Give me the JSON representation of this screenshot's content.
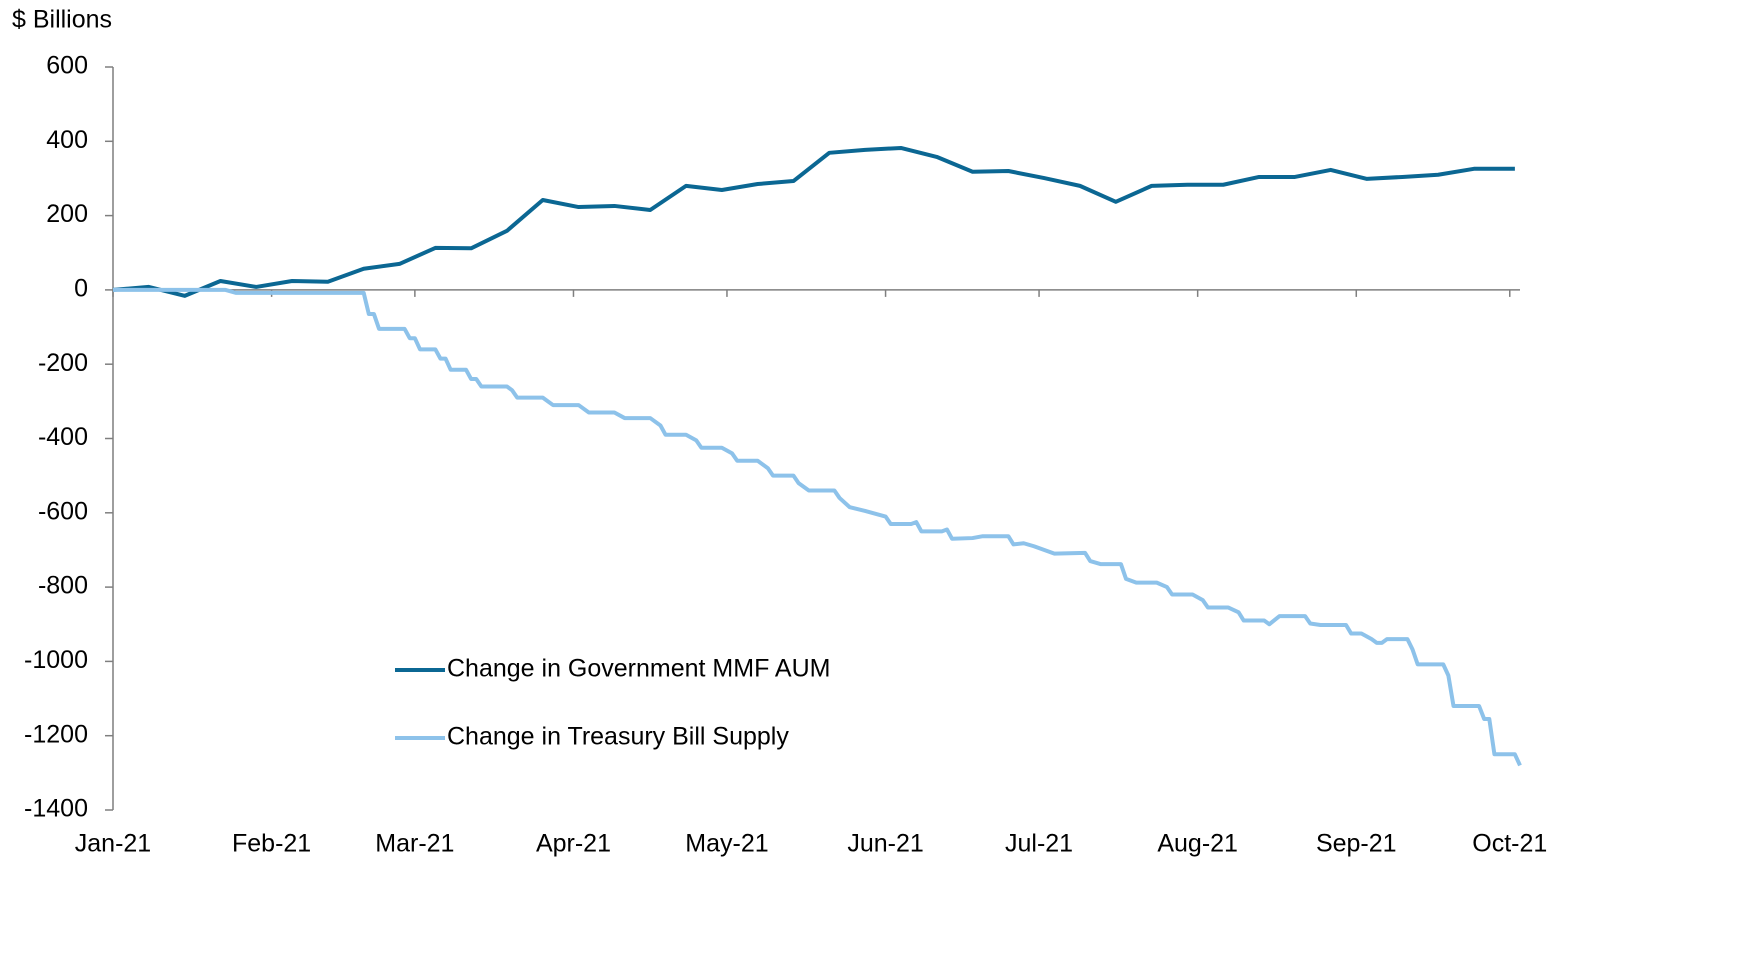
{
  "chart_data": {
    "type": "line",
    "ylabel": "$ Billions",
    "xlim": [
      0,
      275
    ],
    "xticks": [
      {
        "value": 0,
        "label": "Jan-21"
      },
      {
        "value": 31,
        "label": "Feb-21"
      },
      {
        "value": 59,
        "label": "Mar-21"
      },
      {
        "value": 90,
        "label": "Apr-21"
      },
      {
        "value": 120,
        "label": "May-21"
      },
      {
        "value": 151,
        "label": "Jun-21"
      },
      {
        "value": 181,
        "label": "Jul-21"
      },
      {
        "value": 212,
        "label": "Aug-21"
      },
      {
        "value": 243,
        "label": "Sep-21"
      },
      {
        "value": 273,
        "label": "Oct-21"
      }
    ],
    "ylim": [
      -1400,
      600
    ],
    "yticks": [
      600,
      400,
      200,
      0,
      -200,
      -400,
      -600,
      -800,
      -1000,
      -1200,
      -1400
    ],
    "legend": "lower center",
    "series": [
      {
        "name": "Change in Government MMF AUM",
        "color": "#0b6793",
        "x": [
          0,
          7,
          14,
          21,
          28,
          35,
          42,
          49,
          56,
          63,
          70,
          77,
          84,
          91,
          98,
          105,
          112,
          119,
          126,
          133,
          140,
          147,
          154,
          161,
          168,
          175,
          182,
          189,
          196,
          203,
          210,
          217,
          224,
          231,
          238,
          245,
          252,
          259,
          266,
          274
        ],
        "values": [
          0,
          8,
          -16,
          24,
          8,
          24,
          22,
          57,
          70,
          113,
          112,
          159,
          242,
          223,
          226,
          215,
          280,
          269,
          285,
          293,
          369,
          377,
          382,
          358,
          318,
          320,
          301,
          280,
          237,
          280,
          283,
          283,
          304,
          304,
          323,
          299,
          304,
          310,
          326,
          326
        ]
      },
      {
        "name": "Change in Treasury Bill Supply",
        "color": "#8dc2ea",
        "x": [
          0,
          22,
          24,
          49,
          50,
          51,
          52,
          57,
          58,
          59,
          60,
          63,
          64,
          65,
          66,
          69,
          70,
          71,
          72,
          77,
          78,
          79,
          84,
          85,
          86,
          91,
          93,
          98,
          100,
          105,
          107,
          108,
          112,
          114,
          115,
          119,
          121,
          122,
          126,
          128,
          129,
          133,
          134,
          136,
          141,
          142,
          144,
          147,
          151,
          152,
          156,
          157,
          158,
          162,
          163,
          164,
          168,
          170,
          175,
          176,
          178,
          180,
          184,
          190,
          191,
          193,
          197,
          198,
          200,
          204,
          206,
          207,
          211,
          213,
          214,
          218,
          220,
          221,
          225,
          226,
          228,
          233,
          234,
          236,
          241,
          242,
          244,
          246,
          247,
          248,
          249,
          253,
          254,
          255,
          260,
          261,
          262,
          267,
          268,
          269,
          270,
          274,
          275
        ],
        "values": [
          0,
          0,
          -8,
          -8,
          -65,
          -65,
          -105,
          -105,
          -130,
          -130,
          -160,
          -160,
          -185,
          -185,
          -215,
          -215,
          -240,
          -240,
          -260,
          -260,
          -270,
          -290,
          -290,
          -300,
          -310,
          -310,
          -330,
          -330,
          -345,
          -345,
          -365,
          -390,
          -390,
          -405,
          -425,
          -425,
          -440,
          -460,
          -460,
          -480,
          -500,
          -500,
          -520,
          -540,
          -540,
          -560,
          -585,
          -595,
          -610,
          -630,
          -630,
          -625,
          -650,
          -650,
          -645,
          -670,
          -668,
          -663,
          -663,
          -685,
          -682,
          -690,
          -710,
          -708,
          -730,
          -738,
          -738,
          -778,
          -788,
          -788,
          -800,
          -820,
          -820,
          -835,
          -855,
          -855,
          -868,
          -890,
          -890,
          -900,
          -878,
          -878,
          -898,
          -902,
          -902,
          -925,
          -925,
          -940,
          -950,
          -950,
          -940,
          -940,
          -968,
          -1008,
          -1008,
          -1038,
          -1120,
          -1120,
          -1155,
          -1155,
          -1250,
          -1250,
          -1280
        ]
      }
    ]
  }
}
